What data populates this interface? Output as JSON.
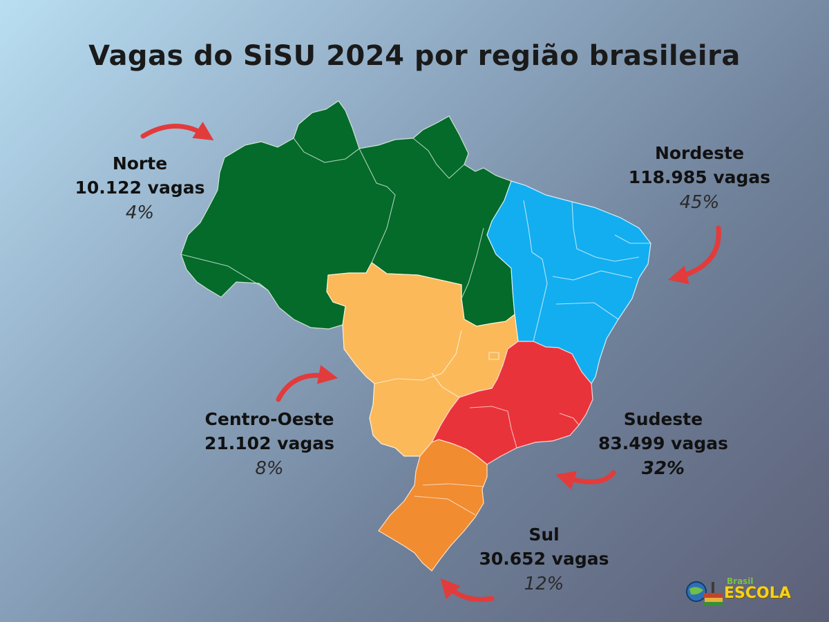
{
  "title": "Vagas do SiSU 2024 por região brasileira",
  "regions": {
    "norte": {
      "name": "Norte",
      "vagas": "10.122 vagas",
      "pct": "4%",
      "color": "#046b2a"
    },
    "nordeste": {
      "name": "Nordeste",
      "vagas": "118.985 vagas",
      "pct": "45%",
      "color": "#12aef0"
    },
    "centro_oeste": {
      "name": "Centro-Oeste",
      "vagas": "21.102 vagas",
      "pct": "8%",
      "color": "#fbb95a"
    },
    "sudeste": {
      "name": "Sudeste",
      "vagas": "83.499 vagas",
      "pct": "32%",
      "color": "#e9333a"
    },
    "sul": {
      "name": "Sul",
      "vagas": "30.652 vagas",
      "pct": "12%",
      "color": "#f18c30"
    }
  },
  "arrow_color": "#e23b3b",
  "logo": {
    "brasil": "Brasil",
    "escola": "ESCOLA"
  }
}
